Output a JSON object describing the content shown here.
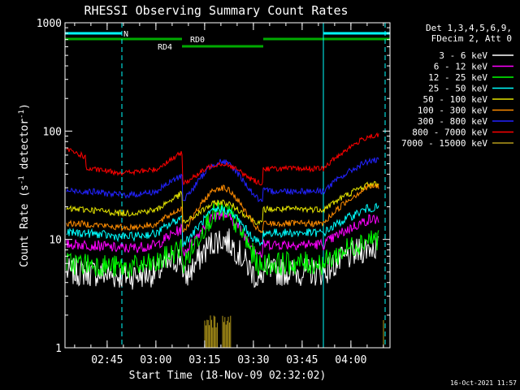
{
  "chart_data": {
    "type": "line",
    "title": "RHESSI Observing Summary Count Rates",
    "xlabel": "Start Time (18-Nov-09 02:32:02)",
    "ylabel_main": "Count Rate (s",
    "ylabel_sup1": "-1",
    "ylabel_mid": " detector",
    "ylabel_sup2": "-1",
    "ylabel_end": ")",
    "yscale": "log",
    "ylim": [
      1,
      1000
    ],
    "xlim_minutes": [
      0,
      100
    ],
    "xticks": [
      {
        "label": "02:45",
        "minutes": 12.97
      },
      {
        "label": "03:00",
        "minutes": 27.97
      },
      {
        "label": "03:15",
        "minutes": 42.97
      },
      {
        "label": "03:30",
        "minutes": 57.97
      },
      {
        "label": "03:45",
        "minutes": 72.97
      },
      {
        "label": "04:00",
        "minutes": 87.97
      }
    ],
    "yticks": [
      {
        "label": "1",
        "value": 1
      },
      {
        "label": "10",
        "value": 10
      },
      {
        "label": "100",
        "value": 100
      },
      {
        "label": "1000",
        "value": 1000
      }
    ],
    "legend_header": [
      "Det 1,3,4,5,6,9,",
      "FDecim 2, Att 0"
    ],
    "legend_position": "right, outside plot",
    "series": [
      {
        "name": "3 - 6 keV",
        "color": "#ffffff",
        "base": 5.0,
        "peak": 10.0,
        "noise": 0.13
      },
      {
        "name": "6 - 12 keV",
        "color": "#ff00ff",
        "base": 9.0,
        "peak": 17.0,
        "noise": 0.05
      },
      {
        "name": "12 - 25 keV",
        "color": "#00ff00",
        "base": 6.0,
        "peak": 18.0,
        "noise": 0.11
      },
      {
        "name": "25 - 50 keV",
        "color": "#00ffff",
        "base": 11.5,
        "peak": 19.0,
        "noise": 0.04
      },
      {
        "name": "50 - 100 keV",
        "color": "#e6e600",
        "base": 19.0,
        "peak": 22.0,
        "noise": 0.03
      },
      {
        "name": "100 - 300 keV",
        "color": "#ff8c00",
        "base": 14.0,
        "peak": 30.0,
        "noise": 0.03
      },
      {
        "name": "300 - 800 keV",
        "color": "#2222ff",
        "base": 28.0,
        "peak": 52.0,
        "noise": 0.03
      },
      {
        "name": "800 - 7000 keV",
        "color": "#ff0000",
        "base": 45.0,
        "peak": 50.0,
        "noise": 0.025
      },
      {
        "name": "7000 - 15000 keV",
        "color": "#b59a1a",
        "base": 0,
        "peak": 0,
        "noise": 0
      }
    ],
    "flag_bars": [
      {
        "label": "N",
        "color": "#00ffff",
        "segments": [
          [
            0,
            17.5
          ],
          [
            79.5,
            100
          ]
        ]
      },
      {
        "label": "RD0",
        "color": "#00aa00",
        "segments": [
          [
            0,
            36
          ],
          [
            61,
            100
          ]
        ]
      },
      {
        "label": "RD4",
        "color": "#00aa00",
        "segments": [
          [
            36,
            61
          ]
        ]
      }
    ],
    "night_markers_minutes": [
      17.5,
      79.5,
      98.5
    ]
  },
  "timestamp": "16-Oct-2021 11:57"
}
